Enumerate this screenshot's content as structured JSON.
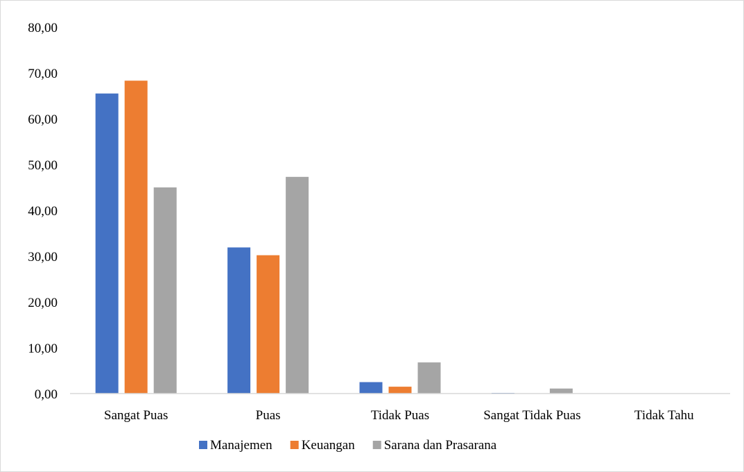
{
  "chart_data": {
    "type": "bar",
    "title": "",
    "xlabel": "",
    "ylabel": "",
    "categories": [
      "Sangat Puas",
      "Puas",
      "Tidak Puas",
      "Sangat Tidak Puas",
      "Tidak Tahu"
    ],
    "series": [
      {
        "name": "Manajemen",
        "color": "#4472C4",
        "values": [
          65.5,
          31.9,
          2.5,
          0.15,
          0.0
        ]
      },
      {
        "name": "Keuangan",
        "color": "#ED7D31",
        "values": [
          68.3,
          30.2,
          1.5,
          0.0,
          0.0
        ]
      },
      {
        "name": "Sarana dan Prasarana",
        "color": "#A5A5A5",
        "values": [
          45.0,
          47.3,
          6.8,
          1.1,
          0.0
        ]
      }
    ],
    "ylim": [
      0,
      80
    ],
    "yticks": [
      "0,00",
      "10,00",
      "20,00",
      "30,00",
      "40,00",
      "50,00",
      "60,00",
      "70,00",
      "80,00"
    ],
    "grid": false,
    "legend_position": "bottom"
  }
}
